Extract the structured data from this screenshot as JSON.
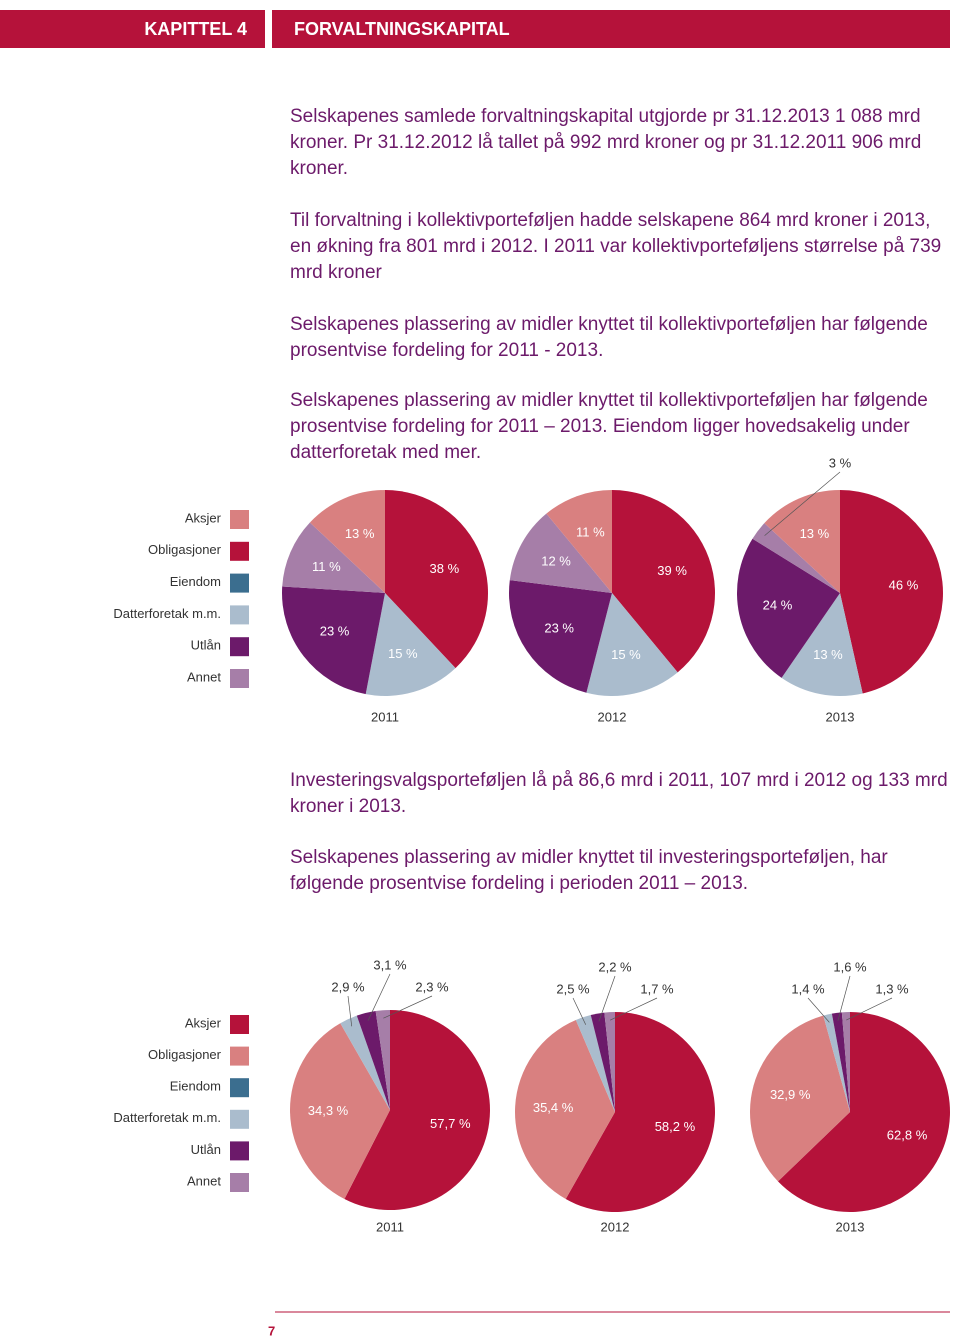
{
  "header": {
    "chapter": "KAPITTEL 4",
    "title": "FORVALTNINGSKAPITAL"
  },
  "paragraphs": [
    "Selskapenes samlede forvaltningskapital utgjorde pr 31.12.2013 1 088 mrd kroner. Pr 31.12.2012 lå tallet på 992 mrd kroner og pr 31.12.2011 906 mrd kroner.",
    "Til forvaltning i kollektivporteføljen hadde selskapene 864 mrd kroner i 2013, en økning fra 801 mrd i 2012. I 2011 var kollektivporteføljens størrelse på 739 mrd kroner",
    "Selskapenes plassering av midler knyttet til kollektivporteføljen har følgende prosentvise fordeling for 2011 - 2013.",
    "Selskapenes plassering av midler knyttet til kollektivporteføljen har følgende prosentvise fordeling for 2011 – 2013. Eiendom ligger hovedsakelig under datterforetak med mer."
  ],
  "paragraphs_2": [
    "Investeringsvalgsporteføljen lå på 86,6 mrd i 2011, 107 mrd i 2012 og 133 mrd kroner i 2013.",
    "Selskapenes plassering av midler knyttet til investeringsporteføljen, har følgende prosentvise fordeling i perioden 2011 – 2013."
  ],
  "chart_data": [
    {
      "type": "pie",
      "categories": [
        "Aksjer",
        "Obligasjoner",
        "Eiendom",
        "Datterforetak m.m.",
        "Utlån",
        "Annet"
      ],
      "colors": [
        "#d98080",
        "#b5123a",
        "#3b6e8f",
        "#aabccd",
        "#6c1a6a",
        "#a67ea8"
      ],
      "series": [
        {
          "name": "2011",
          "values": [
            13,
            38,
            0,
            15,
            23,
            11
          ],
          "value_labels": [
            "13 %",
            "38 %",
            null,
            "15 %",
            "23 %",
            "11 %"
          ]
        },
        {
          "name": "2012",
          "values": [
            11,
            39,
            0,
            15,
            23,
            12
          ],
          "value_labels": [
            "11 %",
            "39 %",
            null,
            "15 %",
            "23 %",
            "12 %"
          ]
        },
        {
          "name": "2013",
          "values": [
            13,
            46,
            0,
            13,
            24,
            3
          ],
          "value_labels": [
            "13 %",
            "46 %",
            null,
            "13 %",
            "24 %",
            "3 %"
          ]
        }
      ]
    },
    {
      "type": "pie",
      "categories": [
        "Aksjer",
        "Obligasjoner",
        "Eiendom",
        "Datterforetak m.m.",
        "Utlån",
        "Annet"
      ],
      "colors": [
        "#b5123a",
        "#d98080",
        "#3b6e8f",
        "#aabccd",
        "#6c1a6a",
        "#a67ea8"
      ],
      "series": [
        {
          "name": "2011",
          "values": [
            57.7,
            34.3,
            0,
            2.9,
            3.1,
            2.3
          ],
          "value_labels": [
            "57,7 %",
            "34,3 %",
            null,
            "2,9 %",
            "3,1 %",
            "2,3 %"
          ]
        },
        {
          "name": "2012",
          "values": [
            58.2,
            35.4,
            0,
            2.5,
            2.2,
            1.7
          ],
          "value_labels": [
            "58,2 %",
            "35,4 %",
            null,
            "2,5 %",
            "2,2 %",
            "1,7 %"
          ]
        },
        {
          "name": "2013",
          "values": [
            62.8,
            32.9,
            0,
            1.4,
            1.6,
            1.3
          ],
          "value_labels": [
            "62,8 %",
            "32,9 %",
            null,
            "1,4 %",
            "1,6 %",
            "1,3 %"
          ]
        }
      ]
    }
  ],
  "page_number": "7"
}
